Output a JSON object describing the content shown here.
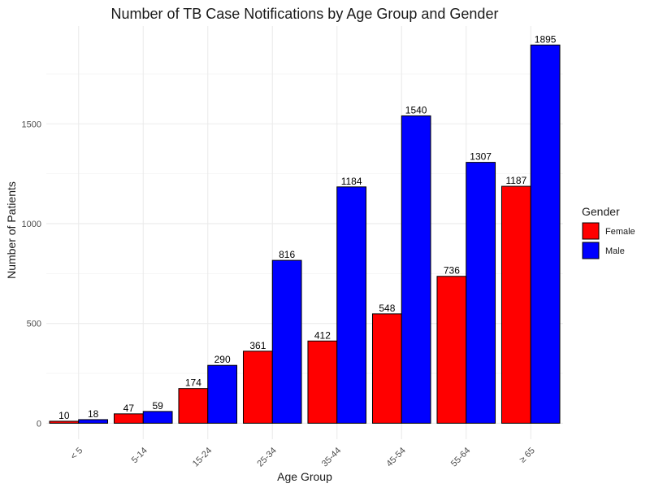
{
  "chart_data": {
    "type": "bar",
    "title": "Number of TB Case Notifications by Age Group and Gender",
    "xlabel": "Age Group",
    "ylabel": "Number of Patients",
    "categories": [
      "< 5",
      "5-14",
      "15-24",
      "25-34",
      "35-44",
      "45-54",
      "55-64",
      "≥ 65"
    ],
    "series": [
      {
        "name": "Female",
        "color": "#FF0000",
        "values": [
          10,
          47,
          174,
          361,
          412,
          548,
          736,
          1187
        ]
      },
      {
        "name": "Male",
        "color": "#0000FF",
        "values": [
          18,
          59,
          290,
          816,
          1184,
          1540,
          1307,
          1895
        ]
      }
    ],
    "yticks": [
      0,
      500,
      1000,
      1500
    ],
    "ylim": [
      -80,
      1990
    ],
    "grid": true,
    "legend": {
      "title": "Gender",
      "position": "right"
    }
  }
}
